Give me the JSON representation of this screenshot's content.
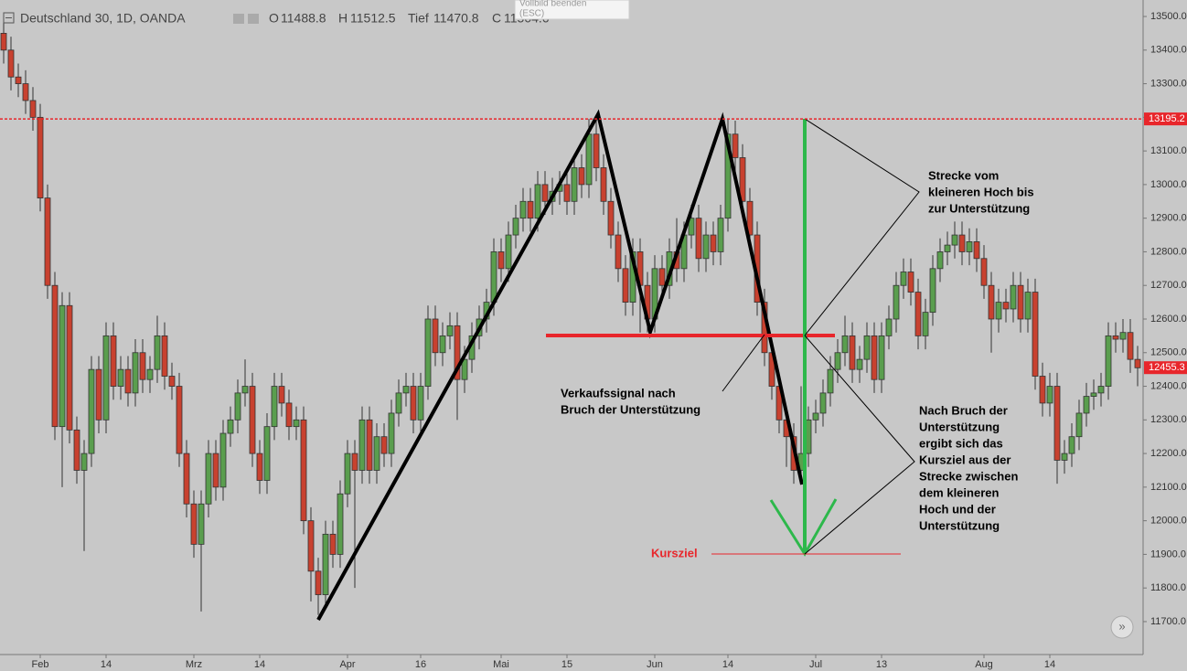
{
  "chart_data": {
    "type": "candlestick",
    "header": {
      "symbol": "Deutschland 30, 1D, OANDA",
      "o_label": "O",
      "o": "11488.8",
      "h_label": "H",
      "h": "11512.5",
      "l_label": "Tief",
      "l": "11470.8",
      "c_label": "C",
      "c": "11504.6"
    },
    "tooltip": [
      "Vollbild beenden",
      "(ESC)"
    ],
    "categories": [
      null,
      null,
      null,
      null,
      null,
      "Feb",
      null,
      null,
      null,
      null,
      null,
      null,
      null,
      null,
      "14",
      null,
      null,
      null,
      null,
      null,
      null,
      null,
      null,
      null,
      null,
      null,
      "Mrz",
      null,
      null,
      null,
      null,
      null,
      null,
      null,
      null,
      "14",
      null,
      null,
      null,
      null,
      null,
      null,
      null,
      null,
      null,
      null,
      null,
      "Apr",
      null,
      null,
      null,
      null,
      null,
      null,
      null,
      null,
      null,
      "16",
      null,
      null,
      null,
      null,
      null,
      null,
      null,
      null,
      null,
      null,
      "Mai",
      null,
      null,
      null,
      null,
      null,
      null,
      null,
      null,
      "15",
      null,
      null,
      null,
      null,
      null,
      null,
      null,
      null,
      null,
      null,
      null,
      "Jun",
      null,
      null,
      null,
      null,
      null,
      null,
      null,
      null,
      null,
      "14",
      null,
      null,
      null,
      null,
      null,
      null,
      null,
      null,
      null,
      null,
      null,
      "Jul",
      null,
      null,
      null,
      null,
      null,
      null,
      null,
      null,
      "13",
      null,
      null,
      null,
      null,
      null,
      null,
      null,
      null,
      null,
      null,
      null,
      null,
      null,
      "Aug",
      null,
      null,
      null,
      null,
      null,
      null,
      null,
      null,
      "14",
      null,
      null,
      null,
      null,
      null,
      null,
      null,
      null,
      null,
      null,
      null,
      null
    ],
    "open": [
      13450,
      13400,
      13320,
      13300,
      13250,
      13200,
      12960,
      12700,
      12280,
      12640,
      12270,
      12150,
      12200,
      12450,
      12300,
      12550,
      12400,
      12450,
      12380,
      12500,
      12420,
      12450,
      12550,
      12430,
      12400,
      12200,
      12050,
      11930,
      12050,
      12200,
      12100,
      12260,
      12300,
      12380,
      12400,
      12200,
      12120,
      12280,
      12400,
      12350,
      12280,
      12300,
      12000,
      11850,
      11780,
      11960,
      11900,
      12080,
      12200,
      12150,
      12300,
      12150,
      12250,
      12200,
      12320,
      12380,
      12400,
      12300,
      12400,
      12600,
      12500,
      12550,
      12580,
      12420,
      12480,
      12550,
      12600,
      12650,
      12800,
      12750,
      12850,
      12900,
      12950,
      12900,
      13000,
      12950,
      12980,
      13000,
      12950,
      13050,
      13000,
      13150,
      13050,
      12950,
      12850,
      12750,
      12650,
      12800,
      12700,
      12600,
      12750,
      12700,
      12800,
      12750,
      12850,
      12900,
      12780,
      12850,
      12800,
      12900,
      13150,
      13080,
      12950,
      12850,
      12650,
      12500,
      12400,
      12300,
      12250,
      12150,
      12200,
      12300,
      12320,
      12380,
      12450,
      12500,
      12550,
      12450,
      12480,
      12550,
      12420,
      12550,
      12600,
      12700,
      12740,
      12680,
      12550,
      12620,
      12750,
      12800,
      12820,
      12850,
      12800,
      12830,
      12780,
      12700,
      12600,
      12650,
      12630,
      12700,
      12600,
      12680,
      12430,
      12350,
      12400,
      12180,
      12200,
      12250,
      12320,
      12370,
      12380,
      12400,
      12550,
      12540,
      12560,
      12480
    ],
    "high": [
      13490,
      13440,
      13360,
      13340,
      13290,
      13240,
      13000,
      12740,
      12680,
      12680,
      12310,
      12240,
      12490,
      12490,
      12590,
      12590,
      12490,
      12490,
      12540,
      12540,
      12490,
      12610,
      12590,
      12470,
      12440,
      12240,
      12090,
      12090,
      12240,
      12240,
      12300,
      12340,
      12420,
      12480,
      12440,
      12240,
      12320,
      12440,
      12440,
      12390,
      12340,
      12340,
      12040,
      11890,
      12000,
      12000,
      12120,
      12240,
      12240,
      12340,
      12340,
      12290,
      12290,
      12360,
      12420,
      12440,
      12440,
      12440,
      12640,
      12640,
      12590,
      12620,
      12620,
      12520,
      12590,
      12640,
      12690,
      12840,
      12840,
      12890,
      12940,
      12990,
      12990,
      13040,
      13040,
      13020,
      13040,
      13040,
      13090,
      13090,
      13195,
      13190,
      13090,
      12990,
      12890,
      12790,
      12840,
      12840,
      12740,
      12790,
      12790,
      12840,
      12900,
      12890,
      12940,
      12940,
      12890,
      12890,
      12940,
      13195,
      13190,
      13120,
      12990,
      12890,
      12690,
      12540,
      12440,
      12340,
      12290,
      12400,
      12340,
      12360,
      12420,
      12490,
      12540,
      12610,
      12590,
      12520,
      12590,
      12590,
      12590,
      12640,
      12740,
      12780,
      12780,
      12720,
      12660,
      12790,
      12840,
      12860,
      12890,
      12890,
      12870,
      12870,
      12820,
      12740,
      12690,
      12690,
      12740,
      12740,
      12720,
      12720,
      12470,
      12440,
      12440,
      12240,
      12290,
      12360,
      12410,
      12420,
      12440,
      12590,
      12590,
      12600,
      12600,
      12520
    ],
    "low": [
      13360,
      13280,
      13260,
      13210,
      13160,
      12920,
      12660,
      12240,
      12100,
      12230,
      12110,
      11910,
      12160,
      12260,
      12260,
      12360,
      12360,
      12340,
      12340,
      12380,
      12380,
      12410,
      12390,
      12360,
      12160,
      12010,
      11890,
      11730,
      12010,
      12060,
      12060,
      12220,
      12260,
      12340,
      12160,
      12080,
      12080,
      12240,
      12310,
      12240,
      12240,
      11960,
      11760,
      11720,
      11740,
      11860,
      11860,
      12040,
      11800,
      12110,
      12110,
      12110,
      12160,
      12160,
      12280,
      12340,
      12260,
      12260,
      12360,
      12460,
      12460,
      12510,
      12300,
      12380,
      12440,
      12510,
      12560,
      12610,
      12710,
      12710,
      12810,
      12860,
      12860,
      12860,
      12910,
      12910,
      12940,
      12910,
      12910,
      12960,
      12960,
      13010,
      12910,
      12810,
      12710,
      12610,
      12610,
      12560,
      12560,
      12560,
      12660,
      12660,
      12710,
      12710,
      12810,
      12740,
      12740,
      12760,
      12760,
      12860,
      13040,
      12910,
      12810,
      12610,
      12460,
      12360,
      12260,
      12160,
      12110,
      12110,
      12160,
      12260,
      12280,
      12340,
      12410,
      12460,
      12410,
      12410,
      12440,
      12380,
      12380,
      12510,
      12560,
      12660,
      12640,
      12510,
      12510,
      12580,
      12710,
      12760,
      12780,
      12760,
      12760,
      12740,
      12660,
      12500,
      12560,
      12590,
      12590,
      12560,
      12560,
      12390,
      12310,
      12310,
      12110,
      12140,
      12160,
      12210,
      12280,
      12330,
      12340,
      12360,
      12500,
      12500,
      12440,
      12400
    ],
    "close": [
      13400,
      13320,
      13300,
      13250,
      13200,
      12960,
      12700,
      12280,
      12640,
      12270,
      12150,
      12200,
      12450,
      12300,
      12550,
      12400,
      12450,
      12380,
      12500,
      12420,
      12450,
      12550,
      12430,
      12400,
      12200,
      12050,
      11930,
      12050,
      12200,
      12100,
      12260,
      12300,
      12380,
      12400,
      12200,
      12120,
      12280,
      12400,
      12350,
      12280,
      12300,
      12000,
      11850,
      11780,
      11960,
      11900,
      12080,
      12200,
      12150,
      12300,
      12150,
      12250,
      12200,
      12320,
      12380,
      12400,
      12300,
      12400,
      12600,
      12500,
      12550,
      12580,
      12420,
      12480,
      12550,
      12600,
      12650,
      12800,
      12750,
      12850,
      12900,
      12950,
      12900,
      13000,
      12950,
      12980,
      13000,
      12950,
      13050,
      13000,
      13150,
      13050,
      12950,
      12850,
      12750,
      12650,
      12800,
      12700,
      12600,
      12750,
      12700,
      12800,
      12750,
      12850,
      12900,
      12780,
      12850,
      12800,
      12900,
      13150,
      13080,
      12950,
      12850,
      12650,
      12500,
      12400,
      12300,
      12250,
      12150,
      12200,
      12300,
      12320,
      12380,
      12450,
      12500,
      12550,
      12450,
      12480,
      12550,
      12420,
      12550,
      12600,
      12700,
      12740,
      12680,
      12550,
      12620,
      12750,
      12800,
      12820,
      12850,
      12800,
      12830,
      12780,
      12700,
      12600,
      12650,
      12630,
      12700,
      12600,
      12680,
      12430,
      12350,
      12400,
      12180,
      12200,
      12250,
      12320,
      12370,
      12380,
      12400,
      12550,
      12540,
      12560,
      12480,
      12455
    ],
    "up_color": "#5a9e4e",
    "down_color": "#c8412f",
    "ylim": [
      11602,
      13549
    ],
    "yticks": [
      {
        "value": 11700,
        "label": "11700.0"
      },
      {
        "value": 11800,
        "label": "11800.0"
      },
      {
        "value": 11900,
        "label": "11900.0"
      },
      {
        "value": 12000,
        "label": "12000.0"
      },
      {
        "value": 12100,
        "label": "12100.0"
      },
      {
        "value": 12200,
        "label": "12200.0"
      },
      {
        "value": 12300,
        "label": "12300.0"
      },
      {
        "value": 12400,
        "label": "12400.0"
      },
      {
        "value": 12500,
        "label": "12500.0"
      },
      {
        "value": 12600,
        "label": "12600.0"
      },
      {
        "value": 12700,
        "label": "12700.0"
      },
      {
        "value": 12800,
        "label": "12800.0"
      },
      {
        "value": 12900,
        "label": "12900.0"
      },
      {
        "value": 13000,
        "label": "13000.0"
      },
      {
        "value": 13100,
        "label": "13100.0"
      },
      {
        "value": 13200,
        "label": "13200.0"
      },
      {
        "value": 13300,
        "label": "13300.0"
      },
      {
        "value": 13400,
        "label": "13400.0"
      },
      {
        "value": 13500,
        "label": "13500.0"
      }
    ],
    "resistance": {
      "value": 13195.2,
      "label": "13195.2"
    },
    "last_price": {
      "value": 12455.3,
      "label": "12455.3"
    },
    "annotations": [
      {
        "lines": [
          "Strecke vom",
          "kleineren Hoch bis",
          "zur Unterstützung"
        ]
      },
      {
        "lines": [
          "Verkaufssignal nach",
          "Bruch der Unterstützung"
        ]
      },
      {
        "lines": [
          "Nach Bruch der",
          "Unterstützung",
          "ergibt sich das",
          "Kursziel aus der",
          "Strecke zwischen",
          "dem kleineren",
          "Hoch und der",
          "Unterstützung"
        ]
      }
    ],
    "target_label": "Kursziel"
  }
}
